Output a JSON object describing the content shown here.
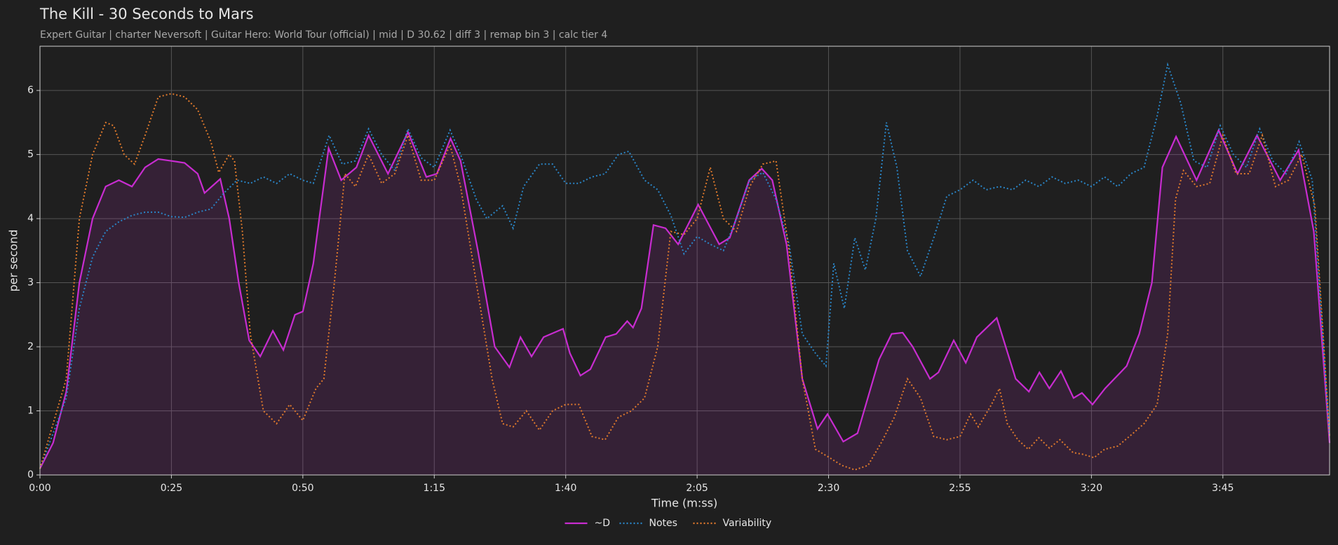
{
  "chart_data": {
    "type": "line",
    "title": "The Kill - 30 Seconds to Mars",
    "subtitle": "Expert Guitar  |  charter Neversoft  |  Guitar Hero: World Tour (official)  |  mid  |  D 30.62  |  diff 3  |  remap bin 3  |  calc tier 4",
    "x_label": "Time (m:ss)",
    "y_label": "per second",
    "xlim": [
      0,
      245.3
    ],
    "ylim": [
      0,
      6.69
    ],
    "xticks": [
      {
        "value": 0,
        "label": "0:00"
      },
      {
        "value": 25,
        "label": "0:25"
      },
      {
        "value": 50,
        "label": "0:50"
      },
      {
        "value": 75,
        "label": "1:15"
      },
      {
        "value": 100,
        "label": "1:40"
      },
      {
        "value": 125,
        "label": "2:05"
      },
      {
        "value": 150,
        "label": "2:30"
      },
      {
        "value": 175,
        "label": "2:55"
      },
      {
        "value": 200,
        "label": "3:20"
      },
      {
        "value": 225,
        "label": "3:45"
      }
    ],
    "yticks": [
      0,
      1,
      2,
      3,
      4,
      5,
      6
    ],
    "grid": true,
    "legend": "bottom",
    "series": [
      {
        "name": "~D",
        "color": "#c82cd0",
        "linestyle": "solid",
        "fill": true,
        "x": [
          0,
          2.5,
          5,
          7.5,
          10,
          12.5,
          15,
          17.5,
          20,
          22.5,
          25,
          27.5,
          30,
          31.3,
          34.3,
          36,
          37.8,
          39.8,
          41.9,
          44.3,
          46.3,
          48.5,
          50,
          52,
          54.9,
          57.3,
          60.2,
          62.5,
          66.2,
          70,
          73.5,
          75.5,
          78.1,
          80,
          83.3,
          86.5,
          89.3,
          91.4,
          93.5,
          95.8,
          99.5,
          100.8,
          102.8,
          104.7,
          107.6,
          109.6,
          111.7,
          112.8,
          114.4,
          116.7,
          119,
          121.4,
          125.2,
          129.2,
          131.2,
          134.9,
          137.3,
          139.3,
          142,
          145,
          147.9,
          149.8,
          152.8,
          155.5,
          159.6,
          162,
          164.1,
          166,
          169.3,
          170.9,
          173.8,
          176.1,
          178.2,
          182,
          185.6,
          188.1,
          190.1,
          192,
          194.2,
          196.6,
          198.2,
          200.2,
          202.6,
          206.7,
          209.1,
          211.5,
          213.5,
          216.1,
          220,
          224.2,
          227.8,
          231.5,
          235.9,
          239.4,
          242.3,
          245.3
        ],
        "values": [
          0.1,
          0.5,
          1.3,
          3.0,
          4.0,
          4.5,
          4.6,
          4.5,
          4.8,
          4.93,
          4.9,
          4.87,
          4.7,
          4.4,
          4.62,
          4.0,
          3.0,
          2.1,
          1.85,
          2.25,
          1.95,
          2.5,
          2.55,
          3.3,
          5.1,
          4.6,
          4.8,
          5.3,
          4.7,
          5.35,
          4.65,
          4.7,
          5.25,
          4.9,
          3.5,
          2.0,
          1.68,
          2.15,
          1.85,
          2.15,
          2.28,
          1.9,
          1.55,
          1.65,
          2.15,
          2.2,
          2.4,
          2.3,
          2.6,
          3.9,
          3.85,
          3.6,
          4.22,
          3.6,
          3.7,
          4.6,
          4.78,
          4.6,
          3.6,
          1.5,
          0.72,
          0.95,
          0.52,
          0.65,
          1.8,
          2.2,
          2.22,
          2.0,
          1.5,
          1.6,
          2.1,
          1.75,
          2.15,
          2.45,
          1.5,
          1.3,
          1.6,
          1.35,
          1.62,
          1.2,
          1.28,
          1.1,
          1.35,
          1.7,
          2.2,
          3.0,
          4.8,
          5.28,
          4.6,
          5.38,
          4.7,
          5.3,
          4.6,
          5.07,
          3.8,
          0.5
        ]
      },
      {
        "name": "Notes",
        "color": "#2a86c8",
        "linestyle": "dotted",
        "fill": false,
        "x": [
          0,
          5,
          7.5,
          10,
          12.5,
          15,
          17.5,
          20,
          22.5,
          25,
          27.5,
          30,
          32.5,
          35,
          37.5,
          40,
          42.5,
          45,
          47.5,
          50,
          52,
          55,
          57.5,
          60,
          62.5,
          65,
          67.5,
          70,
          72.5,
          75,
          78,
          80,
          83,
          85,
          88,
          90,
          92,
          95,
          97.5,
          100,
          102.5,
          105,
          107.5,
          110,
          112,
          115,
          117.5,
          120,
          122.5,
          125,
          127.5,
          130,
          132.5,
          135,
          137.5,
          140,
          142.5,
          145,
          147.5,
          149.5,
          151,
          153,
          155,
          157,
          159,
          161,
          163,
          165,
          167.5,
          170,
          172.5,
          175,
          177.5,
          180,
          182.5,
          185,
          187.5,
          190,
          192.5,
          195,
          197.5,
          200,
          202.5,
          205,
          207.5,
          210,
          212.5,
          214.5,
          217,
          219.5,
          222,
          224.5,
          227,
          229.5,
          232,
          234.5,
          237,
          239.5,
          242,
          245.3
        ],
        "values": [
          0.1,
          1.2,
          2.6,
          3.4,
          3.8,
          3.95,
          4.05,
          4.1,
          4.1,
          4.03,
          4.02,
          4.1,
          4.15,
          4.4,
          4.6,
          4.55,
          4.65,
          4.55,
          4.7,
          4.6,
          4.55,
          5.3,
          4.85,
          4.9,
          5.4,
          5.0,
          4.75,
          5.4,
          4.95,
          4.8,
          5.38,
          5.0,
          4.3,
          4.0,
          4.2,
          3.85,
          4.5,
          4.85,
          4.85,
          4.55,
          4.55,
          4.65,
          4.7,
          5.0,
          5.05,
          4.6,
          4.45,
          4.05,
          3.45,
          3.72,
          3.6,
          3.5,
          4.0,
          4.6,
          4.72,
          4.3,
          3.6,
          2.2,
          1.9,
          1.7,
          3.3,
          2.6,
          3.7,
          3.2,
          4.0,
          5.5,
          4.8,
          3.5,
          3.1,
          3.7,
          4.35,
          4.45,
          4.6,
          4.45,
          4.5,
          4.45,
          4.6,
          4.5,
          4.65,
          4.55,
          4.6,
          4.5,
          4.65,
          4.5,
          4.7,
          4.8,
          5.6,
          6.4,
          5.8,
          4.9,
          4.8,
          5.45,
          5.0,
          4.8,
          5.4,
          4.9,
          4.7,
          5.2,
          4.6,
          0.6
        ]
      },
      {
        "name": "Variability",
        "color": "#e07a2c",
        "linestyle": "dotted",
        "fill": false,
        "x": [
          0,
          5,
          7.5,
          10,
          12.5,
          14,
          16,
          18,
          20,
          22.5,
          25,
          27.5,
          30,
          32.5,
          34,
          36,
          37,
          38.5,
          40,
          42.5,
          45,
          47.5,
          50,
          52.5,
          54,
          56,
          58,
          60,
          62.5,
          65,
          67.5,
          70,
          72.5,
          75,
          78,
          80,
          83,
          86,
          88,
          90,
          92.5,
          95,
          97.5,
          100,
          102.5,
          105,
          107.5,
          110,
          112.5,
          115,
          117.5,
          120,
          122.5,
          125,
          127.5,
          130,
          132.5,
          135,
          137.5,
          140,
          142.5,
          145,
          147.5,
          150,
          152.5,
          155,
          157.5,
          160,
          162.5,
          165,
          167.5,
          170,
          172.5,
          175,
          177,
          178.5,
          181,
          182.5,
          184,
          186,
          188,
          190,
          192,
          194,
          196.5,
          198.5,
          200.5,
          202.5,
          205,
          207.5,
          210,
          212.5,
          214.5,
          216,
          217.5,
          220,
          222.5,
          225,
          227.5,
          230,
          232.5,
          235,
          237.5,
          240,
          242.5,
          245.3
        ],
        "values": [
          0.1,
          1.5,
          4.0,
          5.0,
          5.5,
          5.45,
          5.0,
          4.85,
          5.3,
          5.9,
          5.95,
          5.9,
          5.7,
          5.2,
          4.72,
          5.0,
          4.9,
          3.8,
          2.2,
          1.0,
          0.8,
          1.1,
          0.85,
          1.35,
          1.5,
          3.0,
          4.7,
          4.5,
          5.0,
          4.55,
          4.7,
          5.3,
          4.6,
          4.6,
          5.15,
          4.5,
          3.0,
          1.5,
          0.8,
          0.75,
          1.0,
          0.7,
          1.0,
          1.1,
          1.1,
          0.6,
          0.55,
          0.9,
          1.0,
          1.2,
          2.0,
          3.8,
          3.75,
          4.0,
          4.8,
          4.0,
          3.8,
          4.5,
          4.85,
          4.9,
          3.5,
          1.5,
          0.4,
          0.28,
          0.15,
          0.08,
          0.15,
          0.5,
          0.9,
          1.5,
          1.2,
          0.6,
          0.55,
          0.6,
          0.95,
          0.75,
          1.1,
          1.35,
          0.8,
          0.55,
          0.4,
          0.58,
          0.42,
          0.55,
          0.35,
          0.32,
          0.27,
          0.4,
          0.45,
          0.62,
          0.8,
          1.1,
          2.2,
          4.3,
          4.75,
          4.5,
          4.55,
          5.3,
          4.7,
          4.7,
          5.3,
          4.5,
          4.6,
          5.0,
          4.2,
          0.6
        ]
      }
    ]
  }
}
